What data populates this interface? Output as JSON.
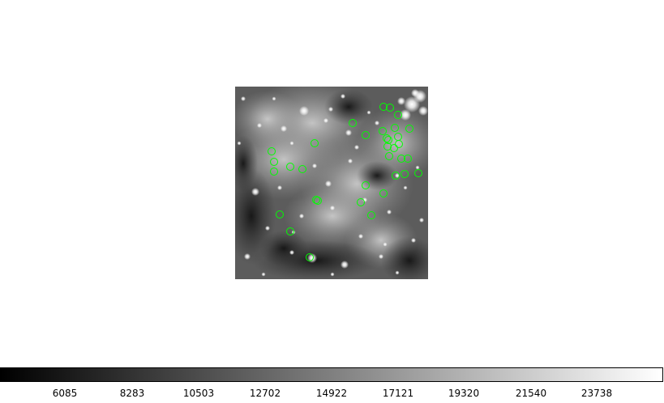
{
  "colorbar": {
    "ticks": [
      "6085",
      "8283",
      "10503",
      "12702",
      "14922",
      "17121",
      "19320",
      "21540",
      "23738"
    ],
    "gradient_start": "#000000",
    "gradient_end": "#ffffff"
  },
  "image": {
    "colormap": "grey",
    "background_color": "#505050"
  },
  "regions": {
    "shape": "circle",
    "color": "#00ff00",
    "count": 37
  }
}
